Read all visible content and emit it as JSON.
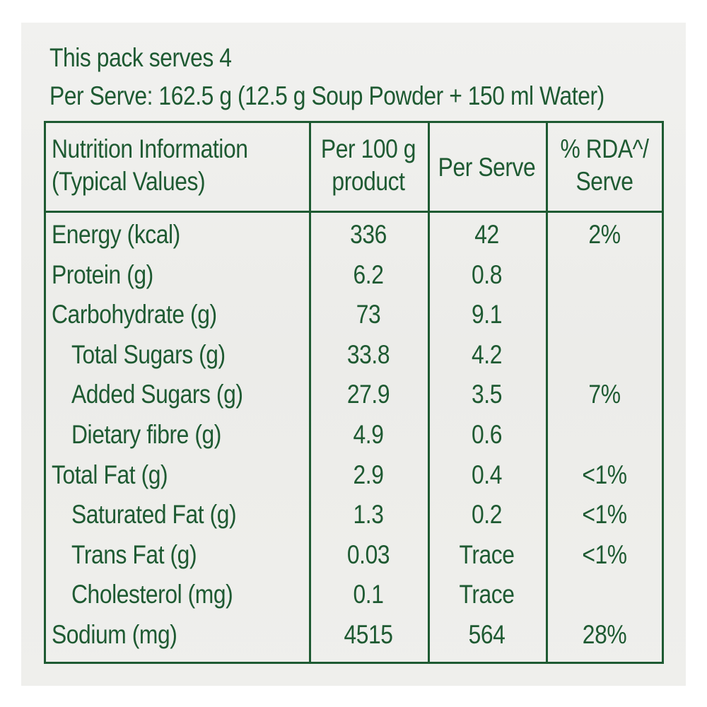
{
  "header": {
    "serves": "This pack serves 4",
    "per_serve": "Per Serve: 162.5 g (12.5 g Soup Powder + 150 ml Water)"
  },
  "table": {
    "columns": {
      "nutrition": "Nutrition Information\n(Typical Values)",
      "per100": "Per 100 g\nproduct",
      "perserve": "Per Serve",
      "rda": "% RDA^/\nServe"
    },
    "rows": [
      {
        "name": "Energy (kcal)",
        "per100": "336",
        "perserve": "42",
        "rda": "2%",
        "indent": false
      },
      {
        "name": "Protein (g)",
        "per100": "6.2",
        "perserve": "0.8",
        "rda": "",
        "indent": false
      },
      {
        "name": "Carbohydrate (g)",
        "per100": "73",
        "perserve": "9.1",
        "rda": "",
        "indent": false
      },
      {
        "name": "Total Sugars (g)",
        "per100": "33.8",
        "perserve": "4.2",
        "rda": "",
        "indent": true
      },
      {
        "name": "Added Sugars (g)",
        "per100": "27.9",
        "perserve": "3.5",
        "rda": "7%",
        "indent": true
      },
      {
        "name": "Dietary fibre (g)",
        "per100": "4.9",
        "perserve": "0.6",
        "rda": "",
        "indent": true
      },
      {
        "name": "Total Fat (g)",
        "per100": "2.9",
        "perserve": "0.4",
        "rda": "<1%",
        "indent": false
      },
      {
        "name": "Saturated Fat (g)",
        "per100": "1.3",
        "perserve": "0.2",
        "rda": "<1%",
        "indent": true
      },
      {
        "name": "Trans Fat (g)",
        "per100": "0.03",
        "perserve": "Trace",
        "rda": "<1%",
        "indent": true
      },
      {
        "name": "Cholesterol (mg)",
        "per100": "0.1",
        "perserve": "Trace",
        "rda": "",
        "indent": true
      },
      {
        "name": "Sodium (mg)",
        "per100": "4515",
        "perserve": "564",
        "rda": "28%",
        "indent": false
      }
    ]
  },
  "colors": {
    "text": "#1e5a32",
    "background": "#eeeeeb"
  }
}
